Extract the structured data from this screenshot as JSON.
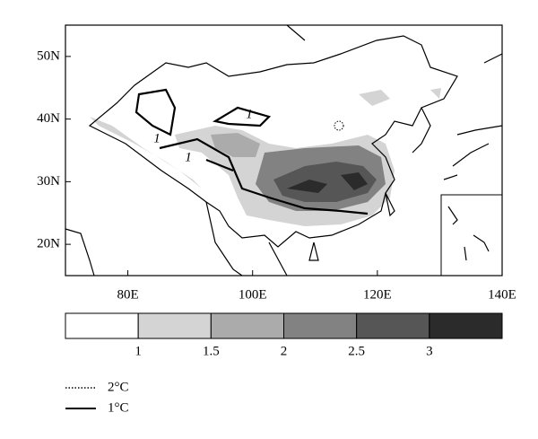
{
  "map": {
    "xlim": [
      70,
      140
    ],
    "ylim": [
      15,
      55
    ],
    "xticks": [
      {
        "value": 80,
        "label": "80E"
      },
      {
        "value": 100,
        "label": "100E"
      },
      {
        "value": 120,
        "label": "120E"
      },
      {
        "value": 140,
        "label": "140E"
      }
    ],
    "yticks": [
      {
        "value": 50,
        "label": "50N"
      },
      {
        "value": 40,
        "label": "40N"
      },
      {
        "value": 30,
        "label": "30N"
      },
      {
        "value": 20,
        "label": "20N"
      }
    ],
    "contour_labels": [
      1,
      1,
      1
    ]
  },
  "colorbar": {
    "levels": [
      1,
      1.5,
      2,
      2.5,
      3
    ],
    "colors": [
      "#ffffff",
      "#d4d4d4",
      "#ababab",
      "#828282",
      "#565656",
      "#2b2b2b"
    ]
  },
  "legend": [
    {
      "label": "2°C",
      "style": "dotted"
    },
    {
      "label": "1°C",
      "style": "solid"
    }
  ]
}
